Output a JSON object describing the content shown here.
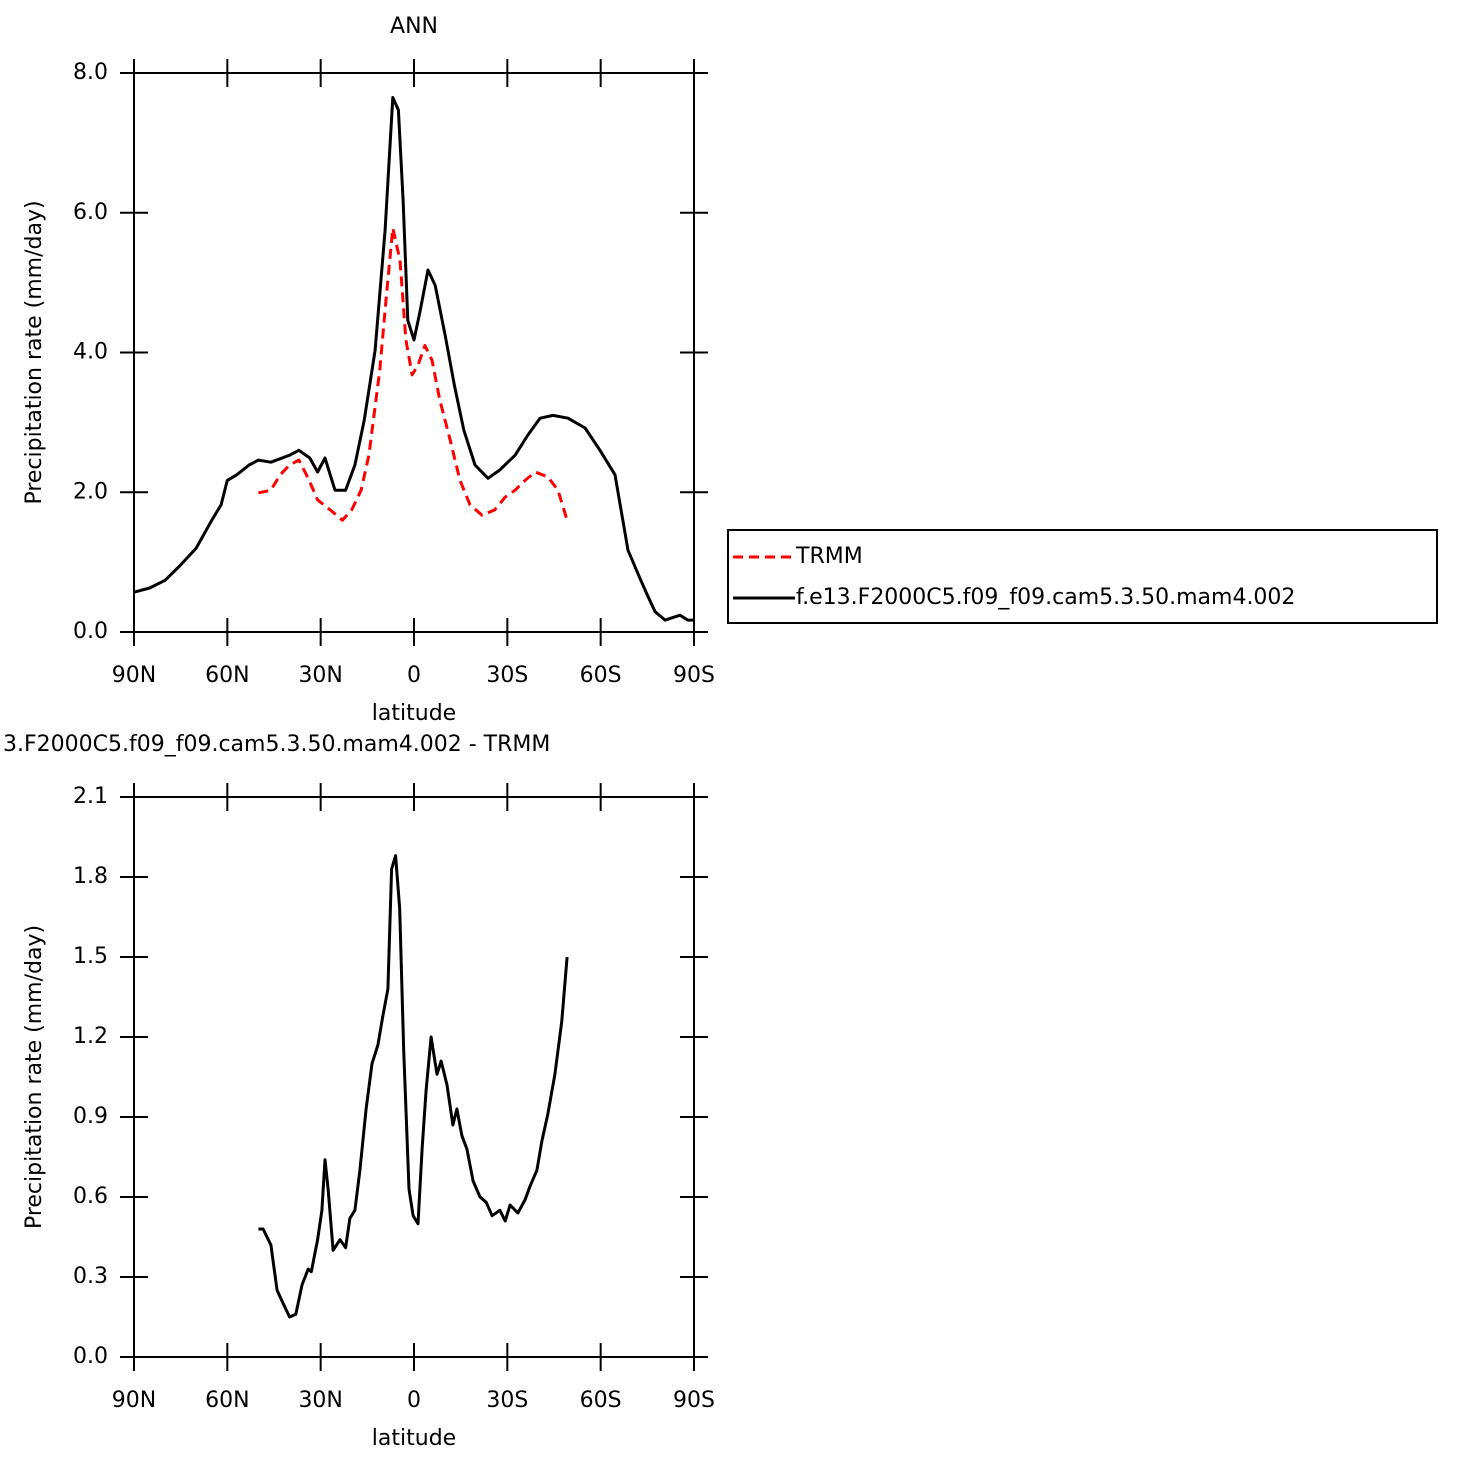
{
  "chart_data": [
    {
      "type": "line",
      "title": "ANN",
      "xlabel": "latitude",
      "ylabel": "Precipitation rate (mm/day)",
      "xlim": [
        90,
        -90
      ],
      "xticks": [
        {
          "value": 90,
          "label": "90N"
        },
        {
          "value": 60,
          "label": "60N"
        },
        {
          "value": 30,
          "label": "30N"
        },
        0,
        {
          "value": -30,
          "label": "30S"
        },
        {
          "value": -60,
          "label": "60S"
        },
        {
          "value": -90,
          "label": "90S"
        }
      ],
      "ylim": [
        0,
        8
      ],
      "yticks": [
        {
          "value": 0,
          "label": "0.0"
        },
        {
          "value": 2,
          "label": "2.0"
        },
        {
          "value": 4,
          "label": "4.0"
        },
        {
          "value": 6,
          "label": "6.0"
        },
        {
          "value": 8,
          "label": "8.0"
        }
      ],
      "legend": "outside-right",
      "series": [
        {
          "name": "TRMM",
          "color": "#ff0000",
          "dashed": true,
          "x": [
            50,
            46,
            43,
            40,
            37,
            34,
            31,
            27,
            23,
            20,
            17,
            14.5,
            11,
            9,
            6.8,
            4.5,
            2.6,
            0.6,
            -1.3,
            -3.5,
            -5.8,
            -8.3,
            -11.6,
            -14.8,
            -18,
            -21.9,
            -26,
            -29.3,
            -32.5,
            -35.7,
            -39,
            -43,
            -46.3,
            -49.2
          ],
          "values": [
            1.99,
            2.03,
            2.25,
            2.39,
            2.46,
            2.2,
            1.89,
            1.75,
            1.6,
            1.75,
            2.03,
            2.53,
            3.75,
            4.75,
            5.78,
            5.32,
            4.18,
            3.68,
            3.82,
            4.1,
            3.89,
            3.32,
            2.75,
            2.17,
            1.82,
            1.67,
            1.75,
            1.93,
            2.03,
            2.17,
            2.29,
            2.22,
            2.03,
            1.6
          ]
        },
        {
          "name": "f.e13.F2000C5.f09_f09.cam5.3.50.mam4.002",
          "color": "#000000",
          "dashed": false,
          "x": [
            90,
            85,
            80,
            75,
            70,
            65,
            62,
            60,
            57,
            53,
            50,
            46,
            40,
            37,
            33.5,
            31,
            28.6,
            25.4,
            22,
            19,
            16,
            12.5,
            9.3,
            6.8,
            5,
            3.5,
            2,
            0,
            -2,
            -4.5,
            -6.8,
            -10,
            -13,
            -16,
            -19.6,
            -23.8,
            -27.6,
            -32.5,
            -36.6,
            -40.5,
            -44.7,
            -49.5,
            -55,
            -59.8,
            -64.6,
            -68.8,
            -72.6,
            -75,
            -77.5,
            -80.7,
            -85.5,
            -88,
            -90
          ],
          "values": [
            0.57,
            0.63,
            0.74,
            0.96,
            1.2,
            1.6,
            1.82,
            2.17,
            2.25,
            2.39,
            2.46,
            2.43,
            2.53,
            2.6,
            2.49,
            2.29,
            2.49,
            2.03,
            2.03,
            2.39,
            3.03,
            4.03,
            5.75,
            7.65,
            7.47,
            6.18,
            4.46,
            4.18,
            4.6,
            5.18,
            4.96,
            4.25,
            3.53,
            2.89,
            2.39,
            2.2,
            2.32,
            2.53,
            2.82,
            3.06,
            3.1,
            3.06,
            2.92,
            2.6,
            2.25,
            1.17,
            0.77,
            0.53,
            0.29,
            0.17,
            0.24,
            0.17,
            0.17
          ]
        }
      ]
    },
    {
      "type": "line",
      "title": "3.F2000C5.f09_f09.cam5.3.50.mam4.002 - TRMM",
      "xlabel": "latitude",
      "ylabel": "Precipitation rate (mm/day)",
      "xlim": [
        90,
        -90
      ],
      "xticks": [
        {
          "value": 90,
          "label": "90N"
        },
        {
          "value": 60,
          "label": "60N"
        },
        {
          "value": 30,
          "label": "30N"
        },
        0,
        {
          "value": -30,
          "label": "30S"
        },
        {
          "value": -60,
          "label": "60S"
        },
        {
          "value": -90,
          "label": "90S"
        }
      ],
      "ylim": [
        0,
        2.1
      ],
      "yticks": [
        {
          "value": 0,
          "label": "0.0"
        },
        {
          "value": 0.3,
          "label": "0.3"
        },
        {
          "value": 0.6,
          "label": "0.6"
        },
        {
          "value": 0.9,
          "label": "0.9"
        },
        {
          "value": 1.2,
          "label": "1.2"
        },
        {
          "value": 1.5,
          "label": "1.5"
        },
        {
          "value": 1.8,
          "label": "1.8"
        },
        {
          "value": 2.1,
          "label": "2.1"
        }
      ],
      "series": [
        {
          "color": "#000000",
          "dashed": false,
          "x": [
            50,
            48.5,
            46,
            44,
            42,
            40,
            38,
            36,
            34,
            33,
            31,
            29.6,
            28.6,
            27.6,
            26,
            23.8,
            22,
            20.6,
            19,
            17.4,
            15.4,
            13.5,
            11.6,
            10,
            8.4,
            7.2,
            5.9,
            4.6,
            3.3,
            1.6,
            0.3,
            -1.3,
            -2.6,
            -3.9,
            -5.5,
            -7.4,
            -8.7,
            -10.6,
            -12.5,
            -13.8,
            -15.4,
            -17,
            -19,
            -21.2,
            -23.2,
            -25.1,
            -27.6,
            -29.3,
            -30.9,
            -33.4,
            -35.7,
            -37.3,
            -39.5,
            -41.1,
            -43,
            -45.3,
            -47.5,
            -49.2
          ],
          "values": [
            0.48,
            0.48,
            0.42,
            0.25,
            0.2,
            0.15,
            0.16,
            0.27,
            0.33,
            0.32,
            0.44,
            0.55,
            0.74,
            0.63,
            0.4,
            0.44,
            0.41,
            0.52,
            0.55,
            0.7,
            0.93,
            1.1,
            1.17,
            1.28,
            1.38,
            1.83,
            1.88,
            1.68,
            1.15,
            0.63,
            0.53,
            0.5,
            0.78,
            1.0,
            1.2,
            1.06,
            1.11,
            1.02,
            0.87,
            0.93,
            0.83,
            0.78,
            0.66,
            0.6,
            0.58,
            0.53,
            0.55,
            0.51,
            0.57,
            0.54,
            0.59,
            0.64,
            0.7,
            0.81,
            0.91,
            1.06,
            1.26,
            1.5
          ]
        }
      ]
    }
  ]
}
